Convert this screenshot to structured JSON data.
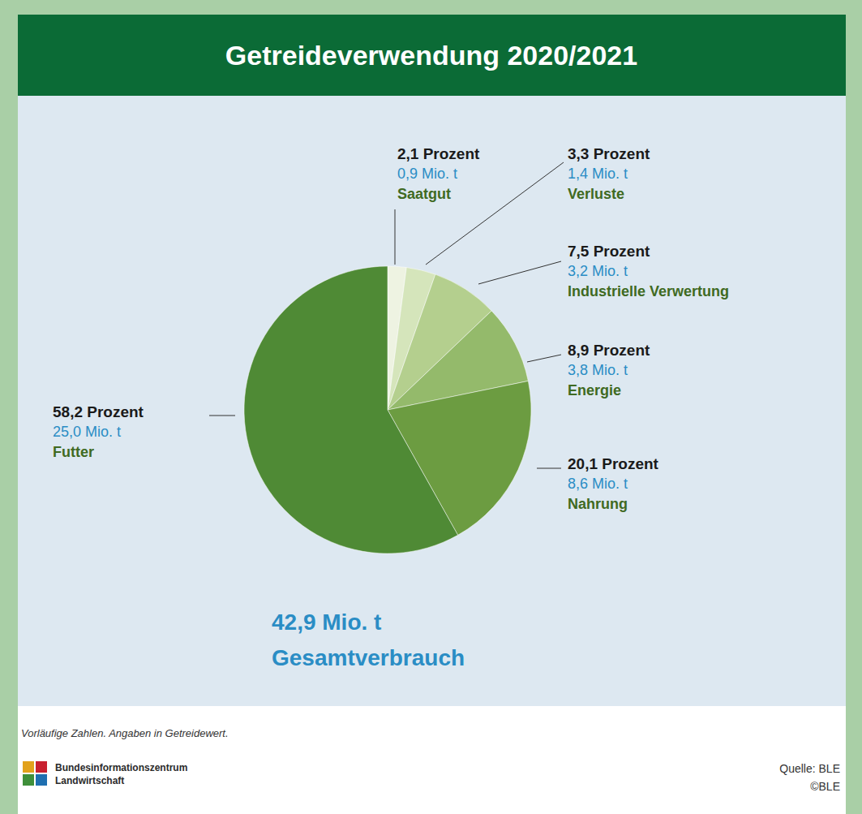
{
  "chart_data": {
    "type": "pie",
    "title": "Getreideverwendung 2020/2021",
    "categories": [
      "Saatgut",
      "Verluste",
      "Industrielle Verwertung",
      "Energie",
      "Nahrung",
      "Futter"
    ],
    "values": [
      2.1,
      3.3,
      7.5,
      8.9,
      20.1,
      58.2
    ],
    "value_labels": [
      "2,1 Prozent",
      "3,3 Prozent",
      "7,5 Prozent",
      "8,9 Prozent",
      "20,1 Prozent",
      "58,2 Prozent"
    ],
    "tonnes_labels": [
      "0,9 Mio. t",
      "1,4 Mio. t",
      "3,2 Mio. t",
      "3,8 Mio. t",
      "8,6 Mio. t",
      "25,0 Mio. t"
    ],
    "colors": [
      "#eef3e2",
      "#d5e5bb",
      "#b4cf8e",
      "#94ba6b",
      "#6c9c41",
      "#4f8a35"
    ],
    "data_labels": true,
    "total_label": "42,9 Mio. t",
    "total_text": "Gesamtverbrauch",
    "note": "Vorläufige Zahlen. Angaben in Getreidewert.",
    "publisher": [
      "Bundesinformationszentrum",
      "Landwirtschaft"
    ],
    "source": "Quelle: BLE",
    "copyright": "©BLE"
  }
}
